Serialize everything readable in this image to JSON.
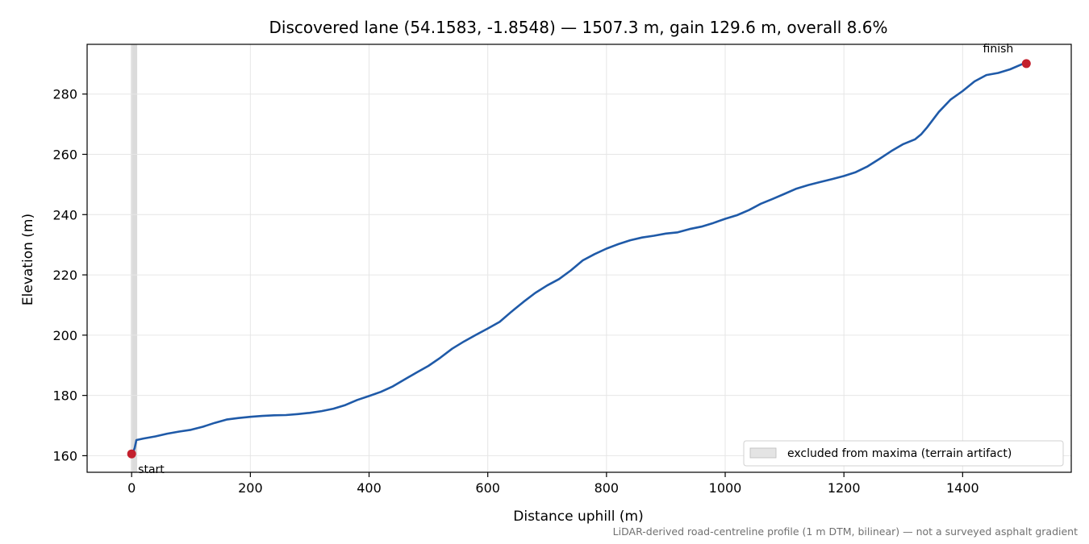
{
  "chart_data": {
    "type": "line",
    "title": "Discovered lane (54.1583, -1.8548) — 1507.3 m, gain 129.6 m, overall 8.6%",
    "xlabel": "Distance uphill (m)",
    "ylabel": "Elevation (m)",
    "xlim": [
      -75,
      1583
    ],
    "ylim": [
      154.5,
      296.5
    ],
    "xticks": [
      0,
      200,
      400,
      600,
      800,
      1000,
      1200,
      1400
    ],
    "yticks": [
      160,
      180,
      200,
      220,
      240,
      260,
      280
    ],
    "grid": true,
    "series": [
      {
        "color": "#1f5aa8",
        "x": [
          0,
          3,
          5,
          8,
          20,
          40,
          60,
          80,
          100,
          120,
          140,
          160,
          180,
          200,
          220,
          240,
          260,
          280,
          300,
          320,
          340,
          360,
          380,
          400,
          420,
          440,
          460,
          480,
          500,
          520,
          540,
          560,
          580,
          600,
          620,
          640,
          660,
          680,
          700,
          720,
          740,
          760,
          780,
          800,
          820,
          840,
          860,
          880,
          900,
          920,
          940,
          960,
          980,
          1000,
          1020,
          1040,
          1060,
          1080,
          1100,
          1120,
          1140,
          1160,
          1180,
          1200,
          1220,
          1240,
          1260,
          1280,
          1300,
          1320,
          1330,
          1340,
          1360,
          1380,
          1400,
          1420,
          1440,
          1460,
          1480,
          1500,
          1507.3
        ],
        "y": [
          160.6,
          161.5,
          162.5,
          165.2,
          165.7,
          166.4,
          167.3,
          168.0,
          168.6,
          169.6,
          170.9,
          172.0,
          172.5,
          172.9,
          173.2,
          173.4,
          173.5,
          173.8,
          174.2,
          174.8,
          175.6,
          176.8,
          178.5,
          179.8,
          181.2,
          183.0,
          185.3,
          187.6,
          189.8,
          192.5,
          195.5,
          197.9,
          200.1,
          202.2,
          204.4,
          207.8,
          211.0,
          214.0,
          216.5,
          218.6,
          221.5,
          224.8,
          226.9,
          228.7,
          230.2,
          231.5,
          232.4,
          233.0,
          233.7,
          234.1,
          235.2,
          236.0,
          237.2,
          238.6,
          239.8,
          241.5,
          243.6,
          245.2,
          246.9,
          248.6,
          249.8,
          250.8,
          251.8,
          252.8,
          254.1,
          256.0,
          258.5,
          261.1,
          263.4,
          265.0,
          266.6,
          268.9,
          274.1,
          278.2,
          281.0,
          284.2,
          286.3,
          287.0,
          288.2,
          289.9,
          290.1
        ]
      }
    ],
    "points": [
      {
        "x": 0,
        "y": 160.6,
        "label": "start",
        "color": "#c3202d"
      },
      {
        "x": 1507.3,
        "y": 290.1,
        "label": "finish",
        "color": "#c3202d"
      }
    ],
    "excluded_band": {
      "x0": 0,
      "x1": 8,
      "color": "#cfcfcf"
    },
    "legend": {
      "placement": "lower-right",
      "label": "excluded from maxima (terrain artifact)"
    },
    "footnote": "LiDAR-derived road-centreline profile (1 m DTM, bilinear) — not a surveyed asphalt gradient"
  }
}
